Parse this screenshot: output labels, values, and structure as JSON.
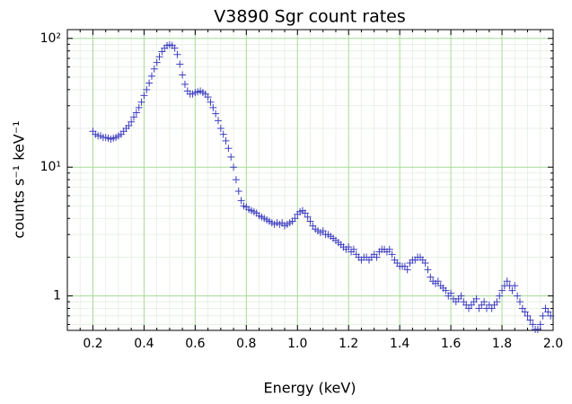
{
  "chart_data": {
    "type": "scatter",
    "title": "V3890 Sgr count rates",
    "xlabel": "Energy (keV)",
    "ylabel": "counts s⁻¹ keV⁻¹",
    "log_y": true,
    "grid": true,
    "marker": "+",
    "xlim": [
      0.1,
      2.0
    ],
    "ylim": [
      0.54,
      117
    ],
    "xticks": [
      0.2,
      0.4,
      0.6,
      0.8,
      {
        "value": 1,
        "label": "1.0"
      },
      1.2,
      1.4,
      1.6,
      1.8,
      {
        "value": 2,
        "label": "2.0"
      }
    ],
    "yticks": [
      {
        "value": 1,
        "label": "1"
      },
      {
        "value": 10,
        "label": "10¹"
      },
      {
        "value": 100,
        "label": "10²"
      }
    ],
    "xminorticks": [
      0.1,
      0.15,
      0.25,
      0.3,
      0.35,
      0.45,
      0.5,
      0.55,
      0.65,
      0.7,
      0.75,
      0.85,
      0.9,
      0.95,
      1.05,
      1.1,
      1.15,
      1.25,
      1.3,
      1.35,
      1.45,
      1.5,
      1.55,
      1.65,
      1.7,
      1.75,
      1.85,
      1.9,
      1.95
    ],
    "yminorticks": [
      0.6,
      0.7,
      0.8,
      0.9,
      2,
      3,
      4,
      5,
      6,
      7,
      8,
      9,
      20,
      30,
      40,
      50,
      60,
      70,
      80,
      90
    ],
    "series": [
      {
        "name": "V3890 Sgr",
        "color": "#3f3fbf",
        "x": [
          0.2,
          0.21,
          0.22,
          0.23,
          0.24,
          0.25,
          0.26,
          0.27,
          0.28,
          0.29,
          0.3,
          0.31,
          0.32,
          0.33,
          0.34,
          0.35,
          0.36,
          0.37,
          0.38,
          0.39,
          0.4,
          0.41,
          0.42,
          0.43,
          0.44,
          0.45,
          0.46,
          0.47,
          0.48,
          0.49,
          0.5,
          0.51,
          0.52,
          0.53,
          0.54,
          0.55,
          0.56,
          0.57,
          0.58,
          0.59,
          0.6,
          0.61,
          0.62,
          0.63,
          0.64,
          0.65,
          0.66,
          0.67,
          0.68,
          0.69,
          0.7,
          0.71,
          0.72,
          0.73,
          0.74,
          0.75,
          0.76,
          0.77,
          0.78,
          0.79,
          0.8,
          0.81,
          0.82,
          0.83,
          0.84,
          0.85,
          0.86,
          0.87,
          0.88,
          0.89,
          0.9,
          0.91,
          0.92,
          0.93,
          0.94,
          0.95,
          0.96,
          0.97,
          0.98,
          0.99,
          1.0,
          1.01,
          1.02,
          1.03,
          1.04,
          1.05,
          1.06,
          1.07,
          1.08,
          1.09,
          1.1,
          1.11,
          1.12,
          1.13,
          1.14,
          1.15,
          1.16,
          1.17,
          1.18,
          1.19,
          1.2,
          1.21,
          1.22,
          1.23,
          1.24,
          1.25,
          1.26,
          1.27,
          1.28,
          1.29,
          1.3,
          1.31,
          1.32,
          1.33,
          1.34,
          1.35,
          1.36,
          1.37,
          1.38,
          1.39,
          1.4,
          1.41,
          1.42,
          1.43,
          1.44,
          1.45,
          1.46,
          1.47,
          1.48,
          1.49,
          1.5,
          1.51,
          1.52,
          1.53,
          1.54,
          1.55,
          1.56,
          1.57,
          1.58,
          1.59,
          1.6,
          1.61,
          1.62,
          1.63,
          1.64,
          1.65,
          1.66,
          1.67,
          1.68,
          1.69,
          1.7,
          1.71,
          1.72,
          1.73,
          1.74,
          1.75,
          1.76,
          1.77,
          1.78,
          1.79,
          1.8,
          1.81,
          1.82,
          1.83,
          1.84,
          1.85,
          1.86,
          1.87,
          1.88,
          1.89,
          1.9,
          1.91,
          1.92,
          1.93,
          1.94,
          1.95,
          1.96,
          1.97,
          1.98,
          1.99
        ],
        "values": [
          19,
          18,
          17.5,
          17.5,
          17,
          17,
          16.8,
          16.5,
          16.8,
          17,
          17.5,
          18,
          19,
          20,
          21,
          22.5,
          24.5,
          26.5,
          29,
          32,
          36,
          40,
          45,
          51,
          58,
          65,
          72,
          79,
          84,
          88,
          89,
          88,
          84,
          75,
          63,
          52,
          44,
          39,
          37,
          37,
          38,
          38.5,
          39,
          38,
          37,
          35,
          32,
          29,
          26,
          23,
          20,
          18,
          16,
          14,
          12,
          10,
          8,
          6.5,
          5.5,
          5,
          4.9,
          4.7,
          4.6,
          4.5,
          4.4,
          4.2,
          4.1,
          4,
          3.9,
          3.8,
          3.7,
          3.6,
          3.7,
          3.6,
          3.7,
          3.5,
          3.6,
          3.7,
          3.8,
          4,
          4.3,
          4.5,
          4.6,
          4.4,
          4.1,
          3.8,
          3.5,
          3.3,
          3.2,
          3.1,
          3.2,
          3,
          3,
          2.9,
          2.8,
          2.7,
          2.6,
          2.5,
          2.4,
          2.3,
          2.4,
          2.2,
          2.3,
          2.1,
          2,
          1.9,
          2,
          2,
          1.9,
          2,
          2.1,
          2,
          2.2,
          2.3,
          2.3,
          2.2,
          2.3,
          2.1,
          1.9,
          1.8,
          1.7,
          1.7,
          1.7,
          1.6,
          1.8,
          1.9,
          1.9,
          2,
          2,
          1.9,
          1.8,
          1.6,
          1.4,
          1.3,
          1.25,
          1.3,
          1.2,
          1.15,
          1.1,
          1,
          1.05,
          0.95,
          0.9,
          0.95,
          1,
          0.9,
          0.85,
          0.8,
          0.85,
          0.9,
          0.95,
          0.8,
          0.85,
          0.9,
          0.8,
          0.85,
          0.8,
          0.85,
          0.9,
          1,
          1.1,
          1.2,
          1.3,
          1.2,
          1.1,
          1.2,
          1,
          0.9,
          0.8,
          0.75,
          0.7,
          0.65,
          0.6,
          0.55,
          0.55,
          0.6,
          0.7,
          0.8,
          0.75,
          0.7
        ]
      }
    ]
  }
}
